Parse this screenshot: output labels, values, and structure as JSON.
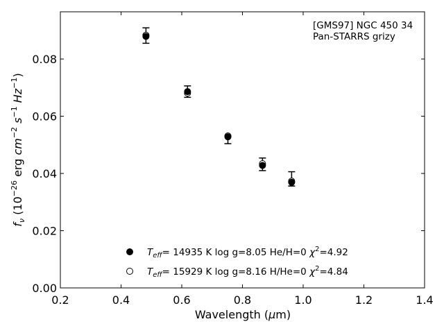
{
  "chart_data": {
    "type": "scatter",
    "annotation": [
      "[GMS97] NGC 450 34",
      "Pan-STARRS grizy"
    ],
    "xlabel": "Wavelength (μm)",
    "ylabel": "f_ν (10^-26 erg cm^-2 s^-1 Hz^-1)",
    "xlim": [
      0.2,
      1.4
    ],
    "ylim": [
      0.0,
      0.0965
    ],
    "xticks": [
      "0.2",
      "0.4",
      "0.6",
      "0.8",
      "1.0",
      "1.2",
      "1.4"
    ],
    "yticks": [
      "0.00",
      "0.02",
      "0.04",
      "0.06",
      "0.08"
    ],
    "grid": false,
    "legend_placement": "lower-center",
    "observed": {
      "x": [
        0.482,
        0.619,
        0.752,
        0.866,
        0.962
      ],
      "y": [
        0.0882,
        0.0686,
        0.0518,
        0.0432,
        0.0381
      ],
      "yerr": [
        0.0027,
        0.002,
        0.0014,
        0.0022,
        0.0025
      ]
    },
    "series": [
      {
        "name": "T_eff= 14935 K  log g=8.05  He/H=0  χ²=4.92",
        "marker": "filled-circle",
        "x": [
          0.482,
          0.619,
          0.752,
          0.866,
          0.962
        ],
        "y": [
          0.0879,
          0.0686,
          0.0528,
          0.0428,
          0.0369
        ]
      },
      {
        "name": "T_eff= 15929 K  log g=8.16  H/He=0  χ²=4.84",
        "marker": "open-circle",
        "x": [
          0.482,
          0.619,
          0.752,
          0.866,
          0.962
        ],
        "y": [
          0.0883,
          0.0681,
          0.0531,
          0.0434,
          0.0373
        ]
      }
    ],
    "legend": {
      "entries": [
        {
          "teff": "= 14935 K  log g=8.05  He/H=0  ",
          "chi": "=4.92"
        },
        {
          "teff": "= 15929 K  log g=8.16  H/He=0  ",
          "chi": "=4.84"
        }
      ]
    }
  }
}
